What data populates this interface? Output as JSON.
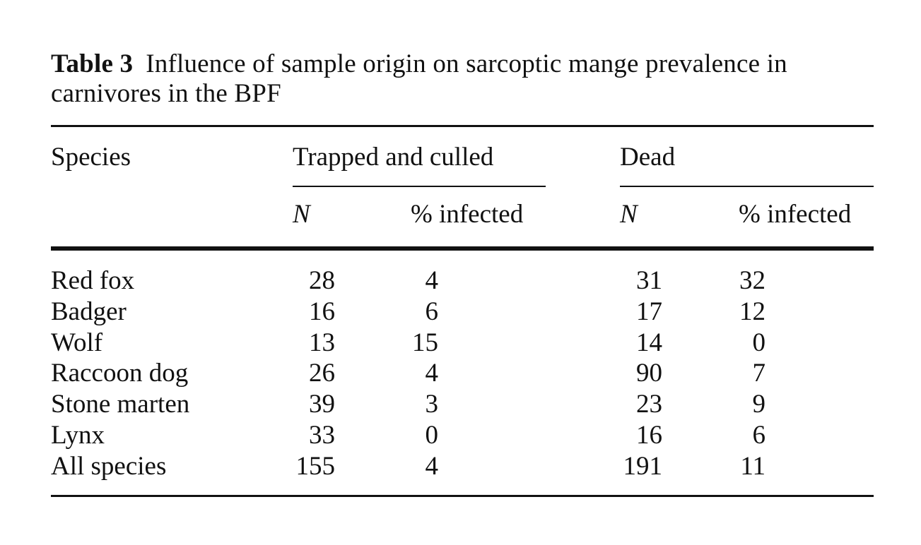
{
  "caption": {
    "label": "Table 3",
    "text": "Influence of sample origin on sarcoptic mange prevalence in carnivores in the BPF"
  },
  "header": {
    "species": "Species",
    "group1": "Trapped and culled",
    "group2": "Dead",
    "n": "N",
    "pct": "% infected"
  },
  "rows": [
    {
      "species": "Red fox",
      "trapped_n": "28",
      "trapped_pct": "4",
      "dead_n": "31",
      "dead_pct": "32"
    },
    {
      "species": "Badger",
      "trapped_n": "16",
      "trapped_pct": "6",
      "dead_n": "17",
      "dead_pct": "12"
    },
    {
      "species": "Wolf",
      "trapped_n": "13",
      "trapped_pct": "15",
      "dead_n": "14",
      "dead_pct": "0"
    },
    {
      "species": "Raccoon dog",
      "trapped_n": "26",
      "trapped_pct": "4",
      "dead_n": "90",
      "dead_pct": "7"
    },
    {
      "species": "Stone marten",
      "trapped_n": "39",
      "trapped_pct": "3",
      "dead_n": "23",
      "dead_pct": "9"
    },
    {
      "species": "Lynx",
      "trapped_n": "33",
      "trapped_pct": "0",
      "dead_n": "16",
      "dead_pct": "6"
    },
    {
      "species": "All species",
      "trapped_n": "155",
      "trapped_pct": "4",
      "dead_n": "191",
      "dead_pct": "11"
    }
  ]
}
